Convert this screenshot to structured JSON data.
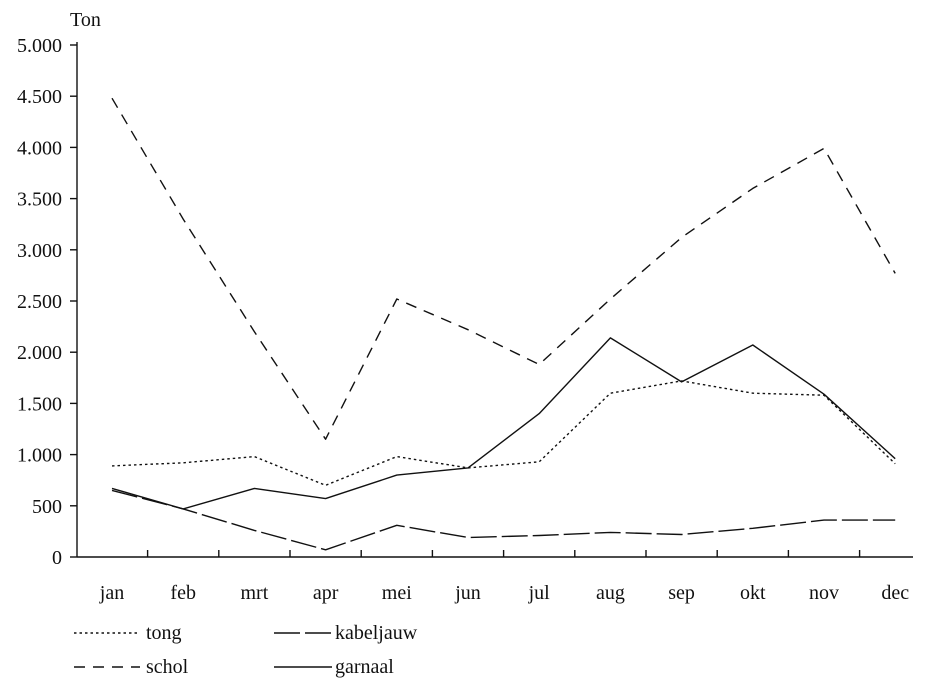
{
  "chart_data": {
    "type": "line",
    "ylabel": "Ton",
    "xlabel": "",
    "ylim": [
      0,
      5000
    ],
    "yticks": [
      0,
      500,
      1000,
      1500,
      2000,
      2500,
      3000,
      3500,
      4000,
      4500,
      5000
    ],
    "ytick_labels": [
      "0",
      "500",
      "1.000",
      "1.500",
      "2.000",
      "2.500",
      "3.000",
      "3.500",
      "4.000",
      "4.500",
      "5.000"
    ],
    "categories": [
      "jan",
      "feb",
      "mrt",
      "apr",
      "mei",
      "jun",
      "jul",
      "aug",
      "sep",
      "okt",
      "nov",
      "dec"
    ],
    "grid": false,
    "legend_position": "bottom-left",
    "series": [
      {
        "name": "tong",
        "style": "dotted",
        "values": [
          890,
          920,
          980,
          700,
          980,
          870,
          930,
          1600,
          1720,
          1600,
          1580,
          910
        ]
      },
      {
        "name": "schol",
        "style": "dashed",
        "values": [
          4480,
          3300,
          2200,
          1150,
          2520,
          2220,
          1880,
          2520,
          3120,
          3600,
          3990,
          2770
        ]
      },
      {
        "name": "kabeljauw",
        "style": "long-dash",
        "values": [
          650,
          470,
          260,
          70,
          310,
          190,
          210,
          240,
          220,
          280,
          360,
          360
        ]
      },
      {
        "name": "garnaal",
        "style": "solid",
        "values": [
          670,
          470,
          670,
          570,
          800,
          870,
          1400,
          2140,
          1710,
          2070,
          1590,
          960
        ]
      }
    ]
  }
}
